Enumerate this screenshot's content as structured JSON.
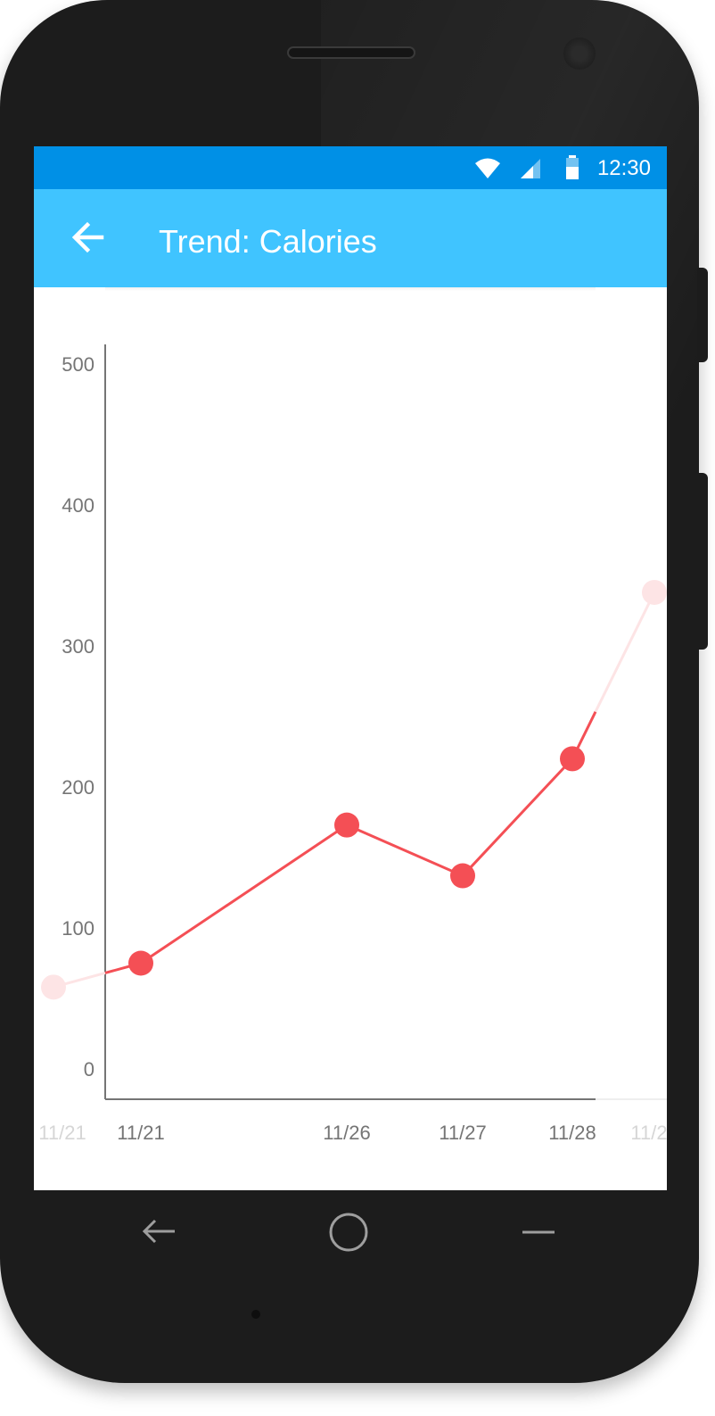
{
  "status_bar": {
    "time": "12:30",
    "icons": [
      "wifi-icon",
      "signal-icon",
      "battery-icon"
    ],
    "color": "#0090e6"
  },
  "app_bar": {
    "title": "Trend: Calories",
    "back_icon": "arrow-back-icon",
    "color": "#40c4ff"
  },
  "chart_data": {
    "type": "line",
    "title": "",
    "xlabel": "",
    "ylabel": "",
    "ylim": [
      0,
      500
    ],
    "y_ticks": [
      "0",
      "100",
      "200",
      "300",
      "400",
      "500"
    ],
    "x_ticks": [
      "11/21",
      "11/26",
      "11/27",
      "11/28"
    ],
    "faded_ticks": [
      "11/21",
      "11/2"
    ],
    "points": [
      {
        "x": "11/21",
        "y": 75
      },
      {
        "x": "11/26",
        "y": 173
      },
      {
        "x": "11/27",
        "y": 137
      },
      {
        "x": "11/28",
        "y": 220
      }
    ],
    "faded_points": [
      {
        "y": 58
      },
      {
        "y": 338
      }
    ],
    "line_color": "#f44f55",
    "faded_color": "#fde4e5",
    "grid": false
  },
  "nav_bar": {
    "icons": [
      "back-nav-icon",
      "home-nav-icon",
      "recents-nav-icon"
    ]
  }
}
